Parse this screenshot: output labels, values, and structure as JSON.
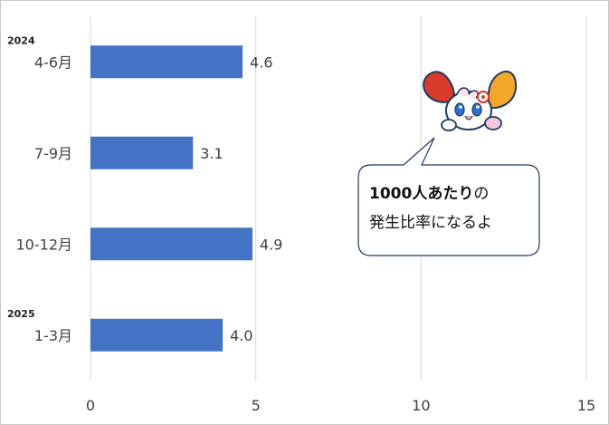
{
  "chart_data": {
    "type": "bar",
    "orientation": "horizontal",
    "categories": [
      "4-6月",
      "7-9月",
      "10-12月",
      "1-3月"
    ],
    "year_labels": [
      "2024",
      "",
      "",
      "2025"
    ],
    "values": [
      4.6,
      3.1,
      4.9,
      4.0
    ],
    "value_labels": [
      "4.6",
      "3.1",
      "4.9",
      "4.0"
    ],
    "xlim": [
      0,
      15
    ],
    "x_ticks": [
      "0",
      "5",
      "10",
      "15"
    ],
    "grid": true,
    "bar_color": "#4472c4",
    "grid_color": "#d9d9d9"
  },
  "callout": {
    "bold_text": "1000人あたり",
    "text_after_bold": "の",
    "line2": "発生比率になるよ"
  },
  "mascot": {
    "icon": "mascot-character-icon",
    "colors": [
      "#d93a2b",
      "#f0a72a",
      "#ffffff"
    ]
  }
}
